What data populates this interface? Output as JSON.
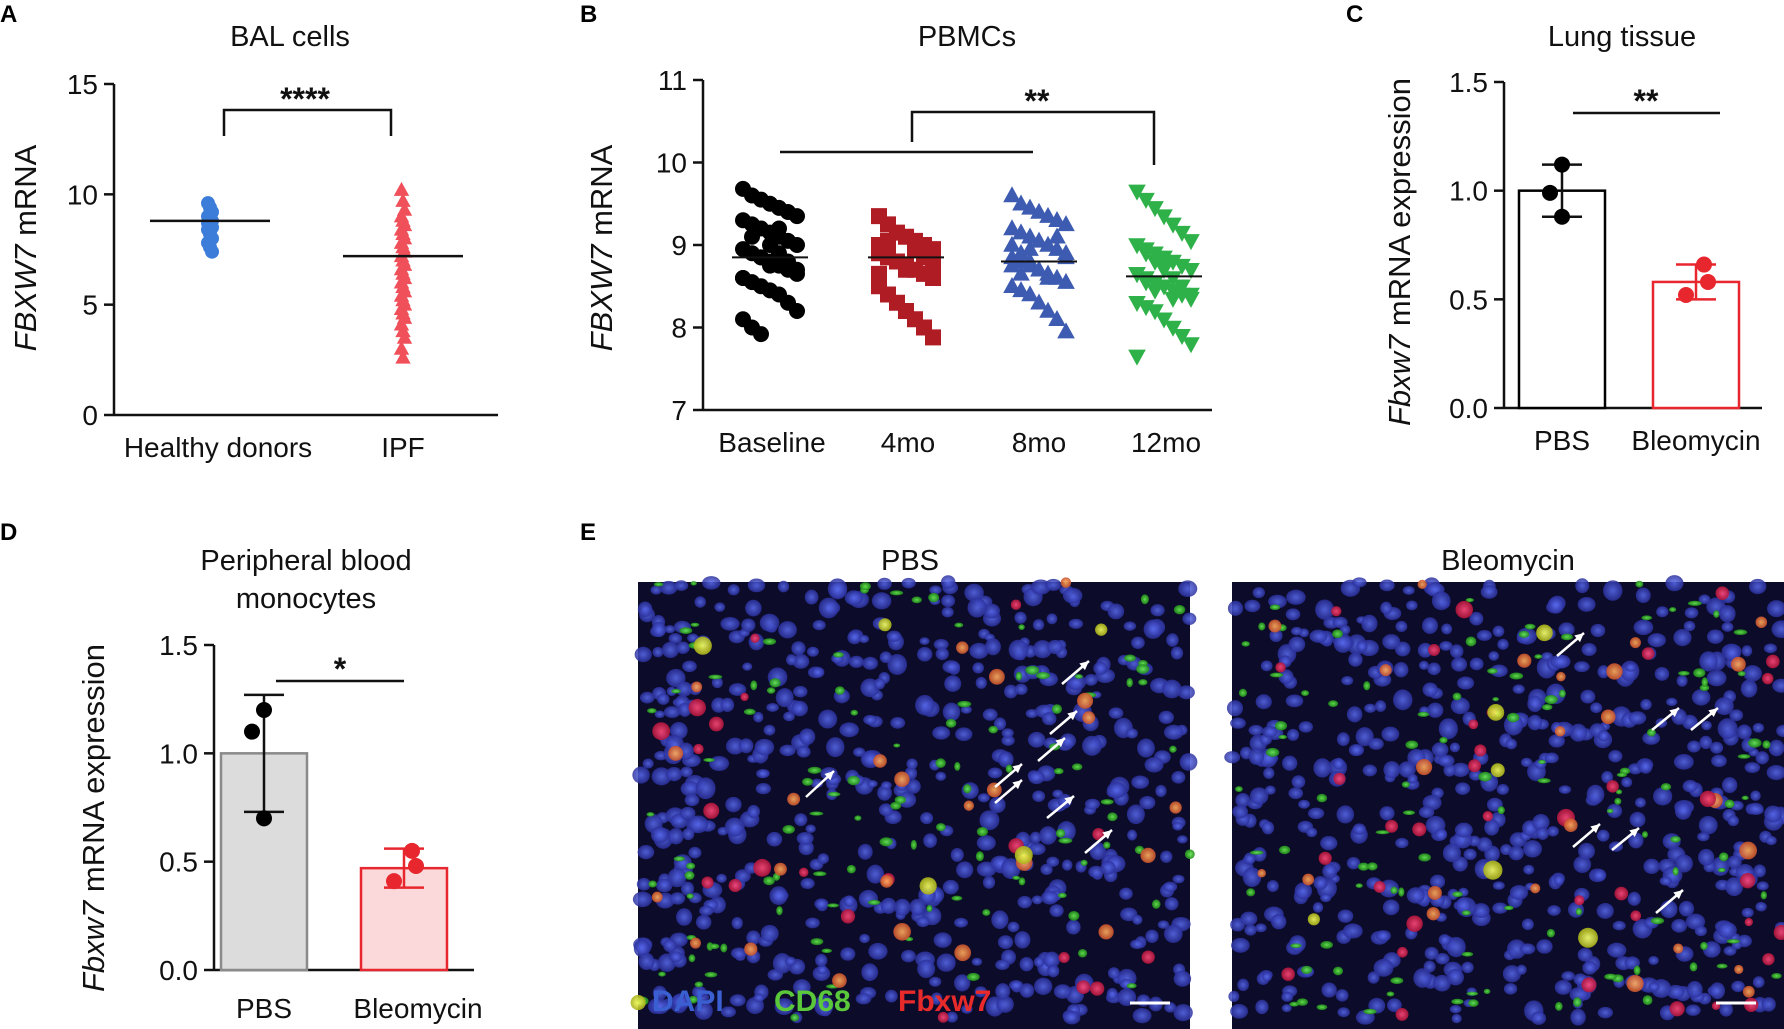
{
  "panels": {
    "A": {
      "letter": "A"
    },
    "B": {
      "letter": "B"
    },
    "C": {
      "letter": "C"
    },
    "D": {
      "letter": "D"
    },
    "E": {
      "letter": "E"
    }
  },
  "chart_data": [
    {
      "panel": "A",
      "type": "scatter",
      "title": "BAL  cells",
      "ylabel_italic": "FBXW7",
      "ylabel_rest": " mRNA",
      "ylim": [
        0,
        15
      ],
      "yticks": [
        0,
        5,
        10,
        15
      ],
      "categories": [
        "Healthy donors",
        "IPF"
      ],
      "series": [
        {
          "category": "Healthy donors",
          "marker": "circle",
          "color": "#3b7dd8",
          "mean": 8.8,
          "values": [
            9.6,
            9.4,
            9.2,
            9.0,
            8.9,
            8.8,
            8.7,
            8.6,
            8.5,
            8.4,
            8.2,
            8.0,
            7.8,
            7.6,
            7.4
          ]
        },
        {
          "category": "IPF",
          "marker": "triangle-up",
          "color": "#f0505a",
          "mean": 7.2,
          "values": [
            10.2,
            9.7,
            9.3,
            9.0,
            8.8,
            8.6,
            8.4,
            8.2,
            8.0,
            7.8,
            7.6,
            7.4,
            7.2,
            7.0,
            6.8,
            6.6,
            6.4,
            6.2,
            6.0,
            5.8,
            5.6,
            5.4,
            5.2,
            5.0,
            4.8,
            4.6,
            4.4,
            4.1,
            3.8,
            3.5,
            3.0,
            2.6
          ]
        }
      ],
      "annotation": {
        "text": "****",
        "between": [
          "Healthy donors",
          "IPF"
        ]
      }
    },
    {
      "panel": "B",
      "type": "scatter",
      "title": "PBMCs",
      "ylabel_italic": "FBXW7",
      "ylabel_rest": " mRNA",
      "ylim": [
        7,
        11
      ],
      "yticks": [
        7,
        8,
        9,
        10,
        11
      ],
      "categories": [
        "Baseline",
        "4mo",
        "8mo",
        "12mo"
      ],
      "series": [
        {
          "category": "Baseline",
          "marker": "circle",
          "color": "#000000",
          "mean": 8.85,
          "values": [
            9.68,
            9.6,
            9.55,
            9.5,
            9.45,
            9.4,
            9.35,
            9.3,
            9.25,
            9.2,
            9.15,
            9.1,
            9.05,
            9.0,
            8.95,
            8.9,
            8.85,
            8.8,
            8.75,
            8.7,
            8.65,
            8.6,
            8.55,
            8.5,
            8.45,
            8.4,
            8.3,
            8.2,
            8.1,
            8.0,
            7.92,
            9.0,
            8.9,
            8.8,
            8.7,
            8.6,
            9.1,
            8.85,
            8.75,
            9.2
          ]
        },
        {
          "category": "4mo",
          "marker": "square",
          "color": "#b01c24",
          "mean": 8.85,
          "values": [
            9.35,
            9.25,
            9.15,
            9.1,
            9.05,
            9.0,
            8.95,
            8.9,
            8.85,
            8.8,
            8.75,
            8.7,
            8.65,
            8.6,
            8.5,
            8.4,
            8.3,
            8.2,
            8.1,
            8.0,
            7.88,
            9.0,
            8.9,
            8.8,
            8.7,
            8.95,
            8.85,
            8.75,
            8.65,
            9.05
          ]
        },
        {
          "category": "8mo",
          "marker": "triangle-up",
          "color": "#3d5bb0",
          "mean": 8.8,
          "values": [
            9.6,
            9.5,
            9.45,
            9.4,
            9.35,
            9.3,
            9.25,
            9.2,
            9.15,
            9.1,
            9.05,
            9.0,
            8.95,
            8.9,
            8.85,
            8.8,
            8.75,
            8.7,
            8.65,
            8.6,
            8.55,
            8.5,
            8.45,
            8.4,
            8.3,
            8.2,
            8.1,
            7.95,
            9.0,
            8.9,
            8.8,
            8.7,
            8.6,
            9.1,
            8.85,
            8.75,
            8.65,
            8.95
          ]
        },
        {
          "category": "12mo",
          "marker": "triangle-down",
          "color": "#2fb14a",
          "mean": 8.62,
          "values": [
            9.65,
            9.55,
            9.45,
            9.35,
            9.25,
            9.15,
            9.05,
            9.0,
            8.95,
            8.9,
            8.85,
            8.8,
            8.75,
            8.7,
            8.65,
            8.6,
            8.55,
            8.5,
            8.45,
            8.4,
            8.35,
            8.3,
            8.25,
            8.2,
            8.1,
            8.0,
            7.9,
            7.8,
            7.65,
            8.9,
            8.8,
            8.7,
            8.6,
            8.5,
            8.4,
            8.65,
            8.55,
            8.45,
            8.75,
            8.35
          ]
        }
      ],
      "annotation": {
        "text": "**",
        "between": [
          "Baseline-8mo",
          "12mo"
        ]
      }
    },
    {
      "panel": "C",
      "type": "bar",
      "title": "Lung tissue",
      "ylabel_italic": "Fbxw7",
      "ylabel_rest": " mRNA expression",
      "ylim": [
        0,
        1.5
      ],
      "yticks": [
        "0.0",
        "0.5",
        "1.0",
        "1.5"
      ],
      "categories": [
        "PBS",
        "Bleomycin"
      ],
      "values": [
        1.0,
        0.58
      ],
      "errors": [
        0.12,
        0.08
      ],
      "points": [
        [
          1.12,
          0.99,
          0.88
        ],
        [
          0.66,
          0.58,
          0.52
        ]
      ],
      "edge_colors": [
        "#000000",
        "#e8262e"
      ],
      "fill_colors": [
        "#ffffff",
        "#ffffff"
      ],
      "point_colors": [
        "#000000",
        "#e8262e"
      ],
      "annotation": {
        "text": "**"
      }
    },
    {
      "panel": "D",
      "type": "bar",
      "title": "Peripheral blood monocytes",
      "ylabel_italic": "Fbxw7",
      "ylabel_rest": " mRNA expression",
      "ylim": [
        0,
        1.5
      ],
      "yticks": [
        "0.0",
        "0.5",
        "1.0",
        "1.5"
      ],
      "categories": [
        "PBS",
        "Bleomycin"
      ],
      "values": [
        1.0,
        0.47
      ],
      "errors": [
        0.27,
        0.09
      ],
      "points": [
        [
          1.2,
          1.1,
          0.7
        ],
        [
          0.55,
          0.48,
          0.41
        ]
      ],
      "edge_colors": [
        "#8a8a8a",
        "#e8262e"
      ],
      "fill_colors": [
        "#dcdcdc",
        "#fbd8da"
      ],
      "point_colors": [
        "#000000",
        "#e8262e"
      ],
      "annotation": {
        "text": "*"
      }
    }
  ],
  "panel_E": {
    "titles": [
      "PBS",
      "Bleomycin"
    ],
    "legend": [
      {
        "text": "DAPI",
        "color": "#3a5fd0"
      },
      {
        "text": "CD68",
        "color": "#5ac83a"
      },
      {
        "text": "Fbxw7",
        "color": "#e82a2a"
      }
    ],
    "arrows_count": [
      8,
      6
    ]
  }
}
